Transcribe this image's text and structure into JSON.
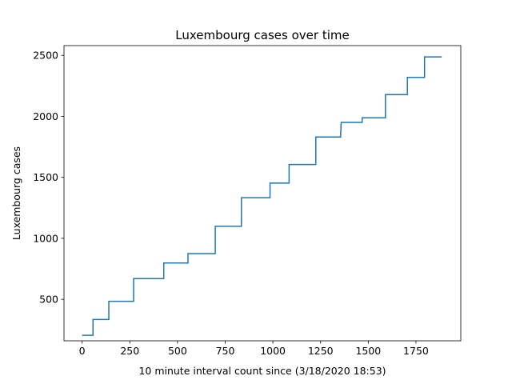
{
  "chart_data": {
    "type": "line",
    "title": "Luxembourg cases over time",
    "xlabel": "10 minute interval count since (3/18/2020 18:53)",
    "ylabel": "Luxembourg cases",
    "xlim": [
      -95,
      1985
    ],
    "ylim": [
      160,
      2580
    ],
    "xticks": [
      0,
      250,
      500,
      750,
      1000,
      1250,
      1500,
      1750
    ],
    "xtick_labels": [
      "0",
      "250",
      "500",
      "750",
      "1000",
      "1250",
      "1500",
      "1750"
    ],
    "yticks": [
      500,
      1000,
      1500,
      2000,
      2500
    ],
    "ytick_labels": [
      "500",
      "1000",
      "1500",
      "2000",
      "2500"
    ],
    "grid": false,
    "line_style": "step",
    "color": "#1f77b4",
    "series": [
      {
        "x": [
          0,
          57,
          57,
          140,
          140,
          270,
          270,
          428,
          428,
          555,
          555,
          698,
          698,
          835,
          835,
          985,
          985,
          1085,
          1085,
          1225,
          1225,
          1355,
          1355,
          1358,
          1358,
          1468,
          1468,
          1590,
          1590,
          1705,
          1705,
          1795,
          1795,
          1885
        ],
        "y": [
          205,
          205,
          335,
          335,
          484,
          484,
          670,
          670,
          798,
          798,
          875,
          875,
          1099,
          1099,
          1333,
          1333,
          1453,
          1453,
          1605,
          1605,
          1831,
          1831,
          1831,
          1950,
          1950,
          1950,
          1988,
          1988,
          2178,
          2178,
          2319,
          2319,
          2487,
          2487
        ]
      }
    ]
  }
}
